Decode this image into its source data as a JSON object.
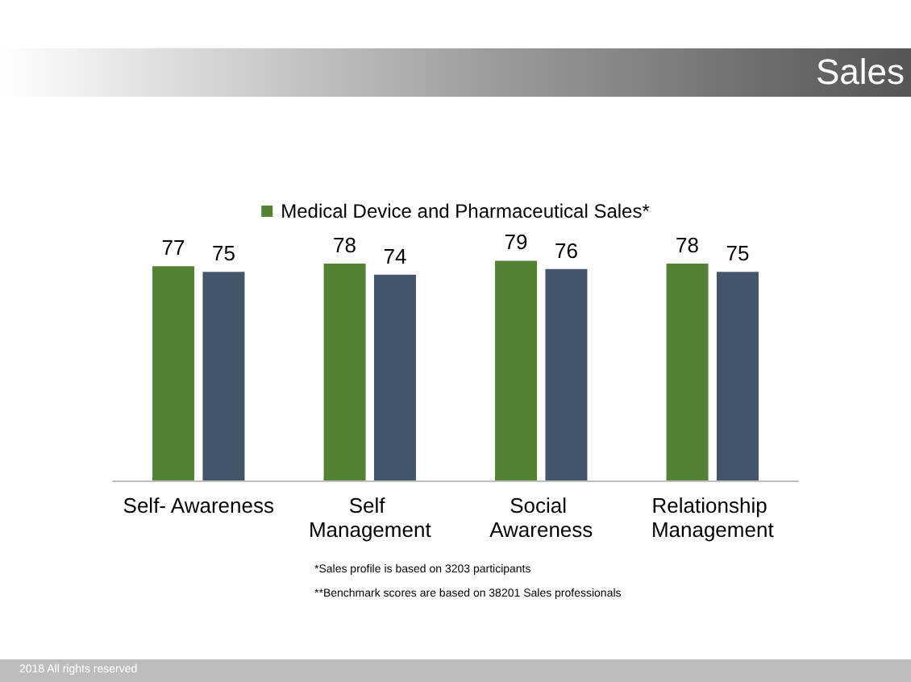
{
  "chart_data": {
    "type": "bar",
    "title": "Sales",
    "categories": [
      "Self- Awareness",
      "Self Management",
      "Social Awareness",
      "Relationship Management"
    ],
    "series": [
      {
        "name": "Medical Device and Pharmaceutical Sales*",
        "color": "#548235",
        "values": [
          77,
          78,
          79,
          78
        ]
      },
      {
        "color": "#44546a",
        "values": [
          75,
          74,
          76,
          75
        ]
      }
    ],
    "tick_labels": "x",
    "data_labels": true,
    "legend": "top",
    "annotations": [
      "*Sales profile is based on 3203 participants",
      "**Benchmark scores are based on 38201 Sales professionals",
      "2018 All rights reserved"
    ]
  }
}
